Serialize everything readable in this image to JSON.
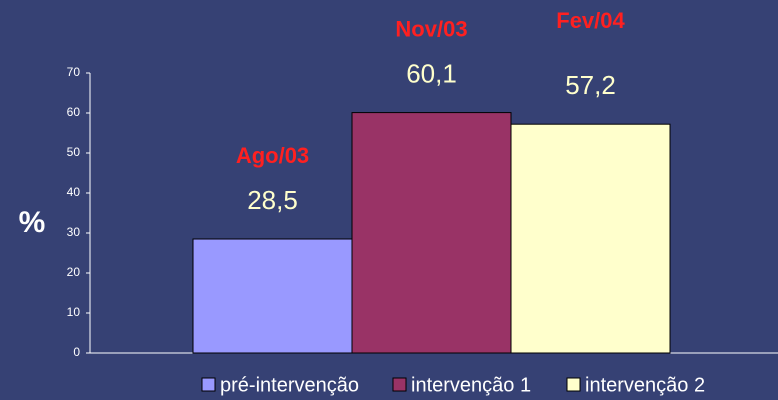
{
  "chart_data": {
    "type": "bar",
    "categories": [
      null
    ],
    "series": [
      {
        "name": "pré-intervenção",
        "color": "#9999ff",
        "values": [
          28.5
        ],
        "value_labels": [
          "28,5"
        ]
      },
      {
        "name": "intervenção 1",
        "color": "#993366",
        "values": [
          60.1
        ],
        "value_labels": [
          "60,1"
        ]
      },
      {
        "name": "intervenção 2",
        "color": "#ffffcc",
        "values": [
          57.2
        ],
        "value_labels": [
          "57,2"
        ]
      }
    ],
    "annotations": [
      "Ago/03",
      "Nov/03",
      "Fev/04"
    ],
    "y_label": "%",
    "ylim": [
      0,
      70
    ],
    "yticks": [
      0,
      10,
      20,
      30,
      40,
      50,
      60,
      70
    ],
    "grid": false,
    "legend": "bottom"
  }
}
